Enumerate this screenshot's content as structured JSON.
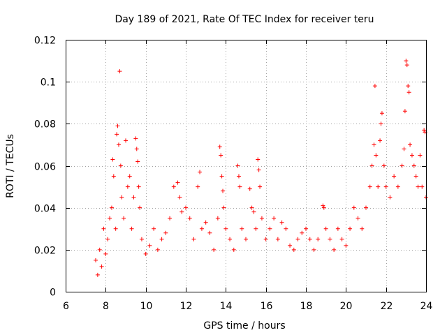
{
  "chart_data": {
    "type": "scatter",
    "title": "Day 189 of 2021, Rate Of TEC Index for receiver teru",
    "xlabel": "GPS time / hours",
    "ylabel": "ROTI / TECUs",
    "xlim": [
      6,
      24
    ],
    "ylim": [
      0,
      0.12
    ],
    "xticks": [
      6,
      8,
      10,
      12,
      14,
      16,
      18,
      20,
      22,
      24
    ],
    "xtick_labels": [
      "6",
      "8",
      "10",
      "12",
      "14",
      "16",
      "18",
      "20",
      "22",
      "24"
    ],
    "yticks": [
      0,
      0.02,
      0.04,
      0.06,
      0.08,
      0.1,
      0.12
    ],
    "ytick_labels": [
      "0",
      "0.02",
      "0.04",
      "0.06",
      "0.08",
      "0.1",
      "0.12"
    ],
    "grid": true,
    "marker": "+",
    "color": "#ff0000",
    "series": [
      {
        "name": "ROTI",
        "points": [
          [
            7.5,
            0.015
          ],
          [
            7.6,
            0.008
          ],
          [
            7.7,
            0.02
          ],
          [
            7.8,
            0.012
          ],
          [
            7.9,
            0.03
          ],
          [
            8.0,
            0.018
          ],
          [
            8.1,
            0.025
          ],
          [
            8.2,
            0.035
          ],
          [
            8.3,
            0.04
          ],
          [
            8.35,
            0.063
          ],
          [
            8.4,
            0.055
          ],
          [
            8.5,
            0.03
          ],
          [
            8.55,
            0.075
          ],
          [
            8.6,
            0.079
          ],
          [
            8.65,
            0.07
          ],
          [
            8.7,
            0.105
          ],
          [
            8.75,
            0.06
          ],
          [
            8.8,
            0.045
          ],
          [
            8.9,
            0.035
          ],
          [
            9.0,
            0.072
          ],
          [
            9.1,
            0.05
          ],
          [
            9.2,
            0.055
          ],
          [
            9.3,
            0.03
          ],
          [
            9.4,
            0.045
          ],
          [
            9.5,
            0.073
          ],
          [
            9.55,
            0.068
          ],
          [
            9.6,
            0.062
          ],
          [
            9.65,
            0.05
          ],
          [
            9.7,
            0.04
          ],
          [
            9.8,
            0.025
          ],
          [
            10.0,
            0.018
          ],
          [
            10.2,
            0.022
          ],
          [
            10.4,
            0.03
          ],
          [
            10.6,
            0.02
          ],
          [
            10.8,
            0.025
          ],
          [
            11.0,
            0.028
          ],
          [
            11.2,
            0.035
          ],
          [
            11.4,
            0.05
          ],
          [
            11.6,
            0.052
          ],
          [
            11.7,
            0.045
          ],
          [
            11.8,
            0.038
          ],
          [
            12.0,
            0.04
          ],
          [
            12.2,
            0.035
          ],
          [
            12.4,
            0.025
          ],
          [
            12.6,
            0.05
          ],
          [
            12.7,
            0.057
          ],
          [
            12.8,
            0.03
          ],
          [
            13.0,
            0.033
          ],
          [
            13.2,
            0.028
          ],
          [
            13.4,
            0.02
          ],
          [
            13.6,
            0.035
          ],
          [
            13.7,
            0.069
          ],
          [
            13.75,
            0.065
          ],
          [
            13.8,
            0.055
          ],
          [
            13.85,
            0.048
          ],
          [
            13.9,
            0.04
          ],
          [
            14.0,
            0.03
          ],
          [
            14.2,
            0.025
          ],
          [
            14.4,
            0.02
          ],
          [
            14.6,
            0.06
          ],
          [
            14.65,
            0.055
          ],
          [
            14.7,
            0.05
          ],
          [
            14.8,
            0.03
          ],
          [
            15.0,
            0.025
          ],
          [
            15.2,
            0.049
          ],
          [
            15.3,
            0.04
          ],
          [
            15.4,
            0.038
          ],
          [
            15.5,
            0.03
          ],
          [
            15.6,
            0.063
          ],
          [
            15.65,
            0.058
          ],
          [
            15.7,
            0.05
          ],
          [
            15.8,
            0.035
          ],
          [
            16.0,
            0.025
          ],
          [
            16.2,
            0.03
          ],
          [
            16.4,
            0.035
          ],
          [
            16.6,
            0.025
          ],
          [
            16.8,
            0.033
          ],
          [
            17.0,
            0.03
          ],
          [
            17.2,
            0.022
          ],
          [
            17.4,
            0.02
          ],
          [
            17.6,
            0.025
          ],
          [
            17.8,
            0.028
          ],
          [
            18.0,
            0.03
          ],
          [
            18.2,
            0.025
          ],
          [
            18.4,
            0.02
          ],
          [
            18.6,
            0.025
          ],
          [
            18.85,
            0.041
          ],
          [
            18.9,
            0.04
          ],
          [
            19.0,
            0.03
          ],
          [
            19.2,
            0.025
          ],
          [
            19.4,
            0.02
          ],
          [
            19.6,
            0.03
          ],
          [
            19.8,
            0.025
          ],
          [
            20.0,
            0.022
          ],
          [
            20.2,
            0.03
          ],
          [
            20.4,
            0.04
          ],
          [
            20.6,
            0.035
          ],
          [
            20.8,
            0.03
          ],
          [
            21.0,
            0.04
          ],
          [
            21.2,
            0.05
          ],
          [
            21.3,
            0.06
          ],
          [
            21.4,
            0.07
          ],
          [
            21.45,
            0.098
          ],
          [
            21.5,
            0.065
          ],
          [
            21.6,
            0.05
          ],
          [
            21.7,
            0.072
          ],
          [
            21.75,
            0.08
          ],
          [
            21.8,
            0.085
          ],
          [
            21.9,
            0.06
          ],
          [
            22.0,
            0.05
          ],
          [
            22.2,
            0.045
          ],
          [
            22.4,
            0.055
          ],
          [
            22.6,
            0.05
          ],
          [
            22.8,
            0.06
          ],
          [
            22.9,
            0.068
          ],
          [
            22.95,
            0.086
          ],
          [
            23.0,
            0.11
          ],
          [
            23.05,
            0.108
          ],
          [
            23.1,
            0.098
          ],
          [
            23.15,
            0.095
          ],
          [
            23.2,
            0.07
          ],
          [
            23.3,
            0.065
          ],
          [
            23.4,
            0.06
          ],
          [
            23.5,
            0.055
          ],
          [
            23.6,
            0.05
          ],
          [
            23.7,
            0.065
          ],
          [
            23.8,
            0.05
          ],
          [
            23.9,
            0.077
          ],
          [
            23.95,
            0.076
          ],
          [
            24.0,
            0.045
          ]
        ]
      }
    ]
  }
}
